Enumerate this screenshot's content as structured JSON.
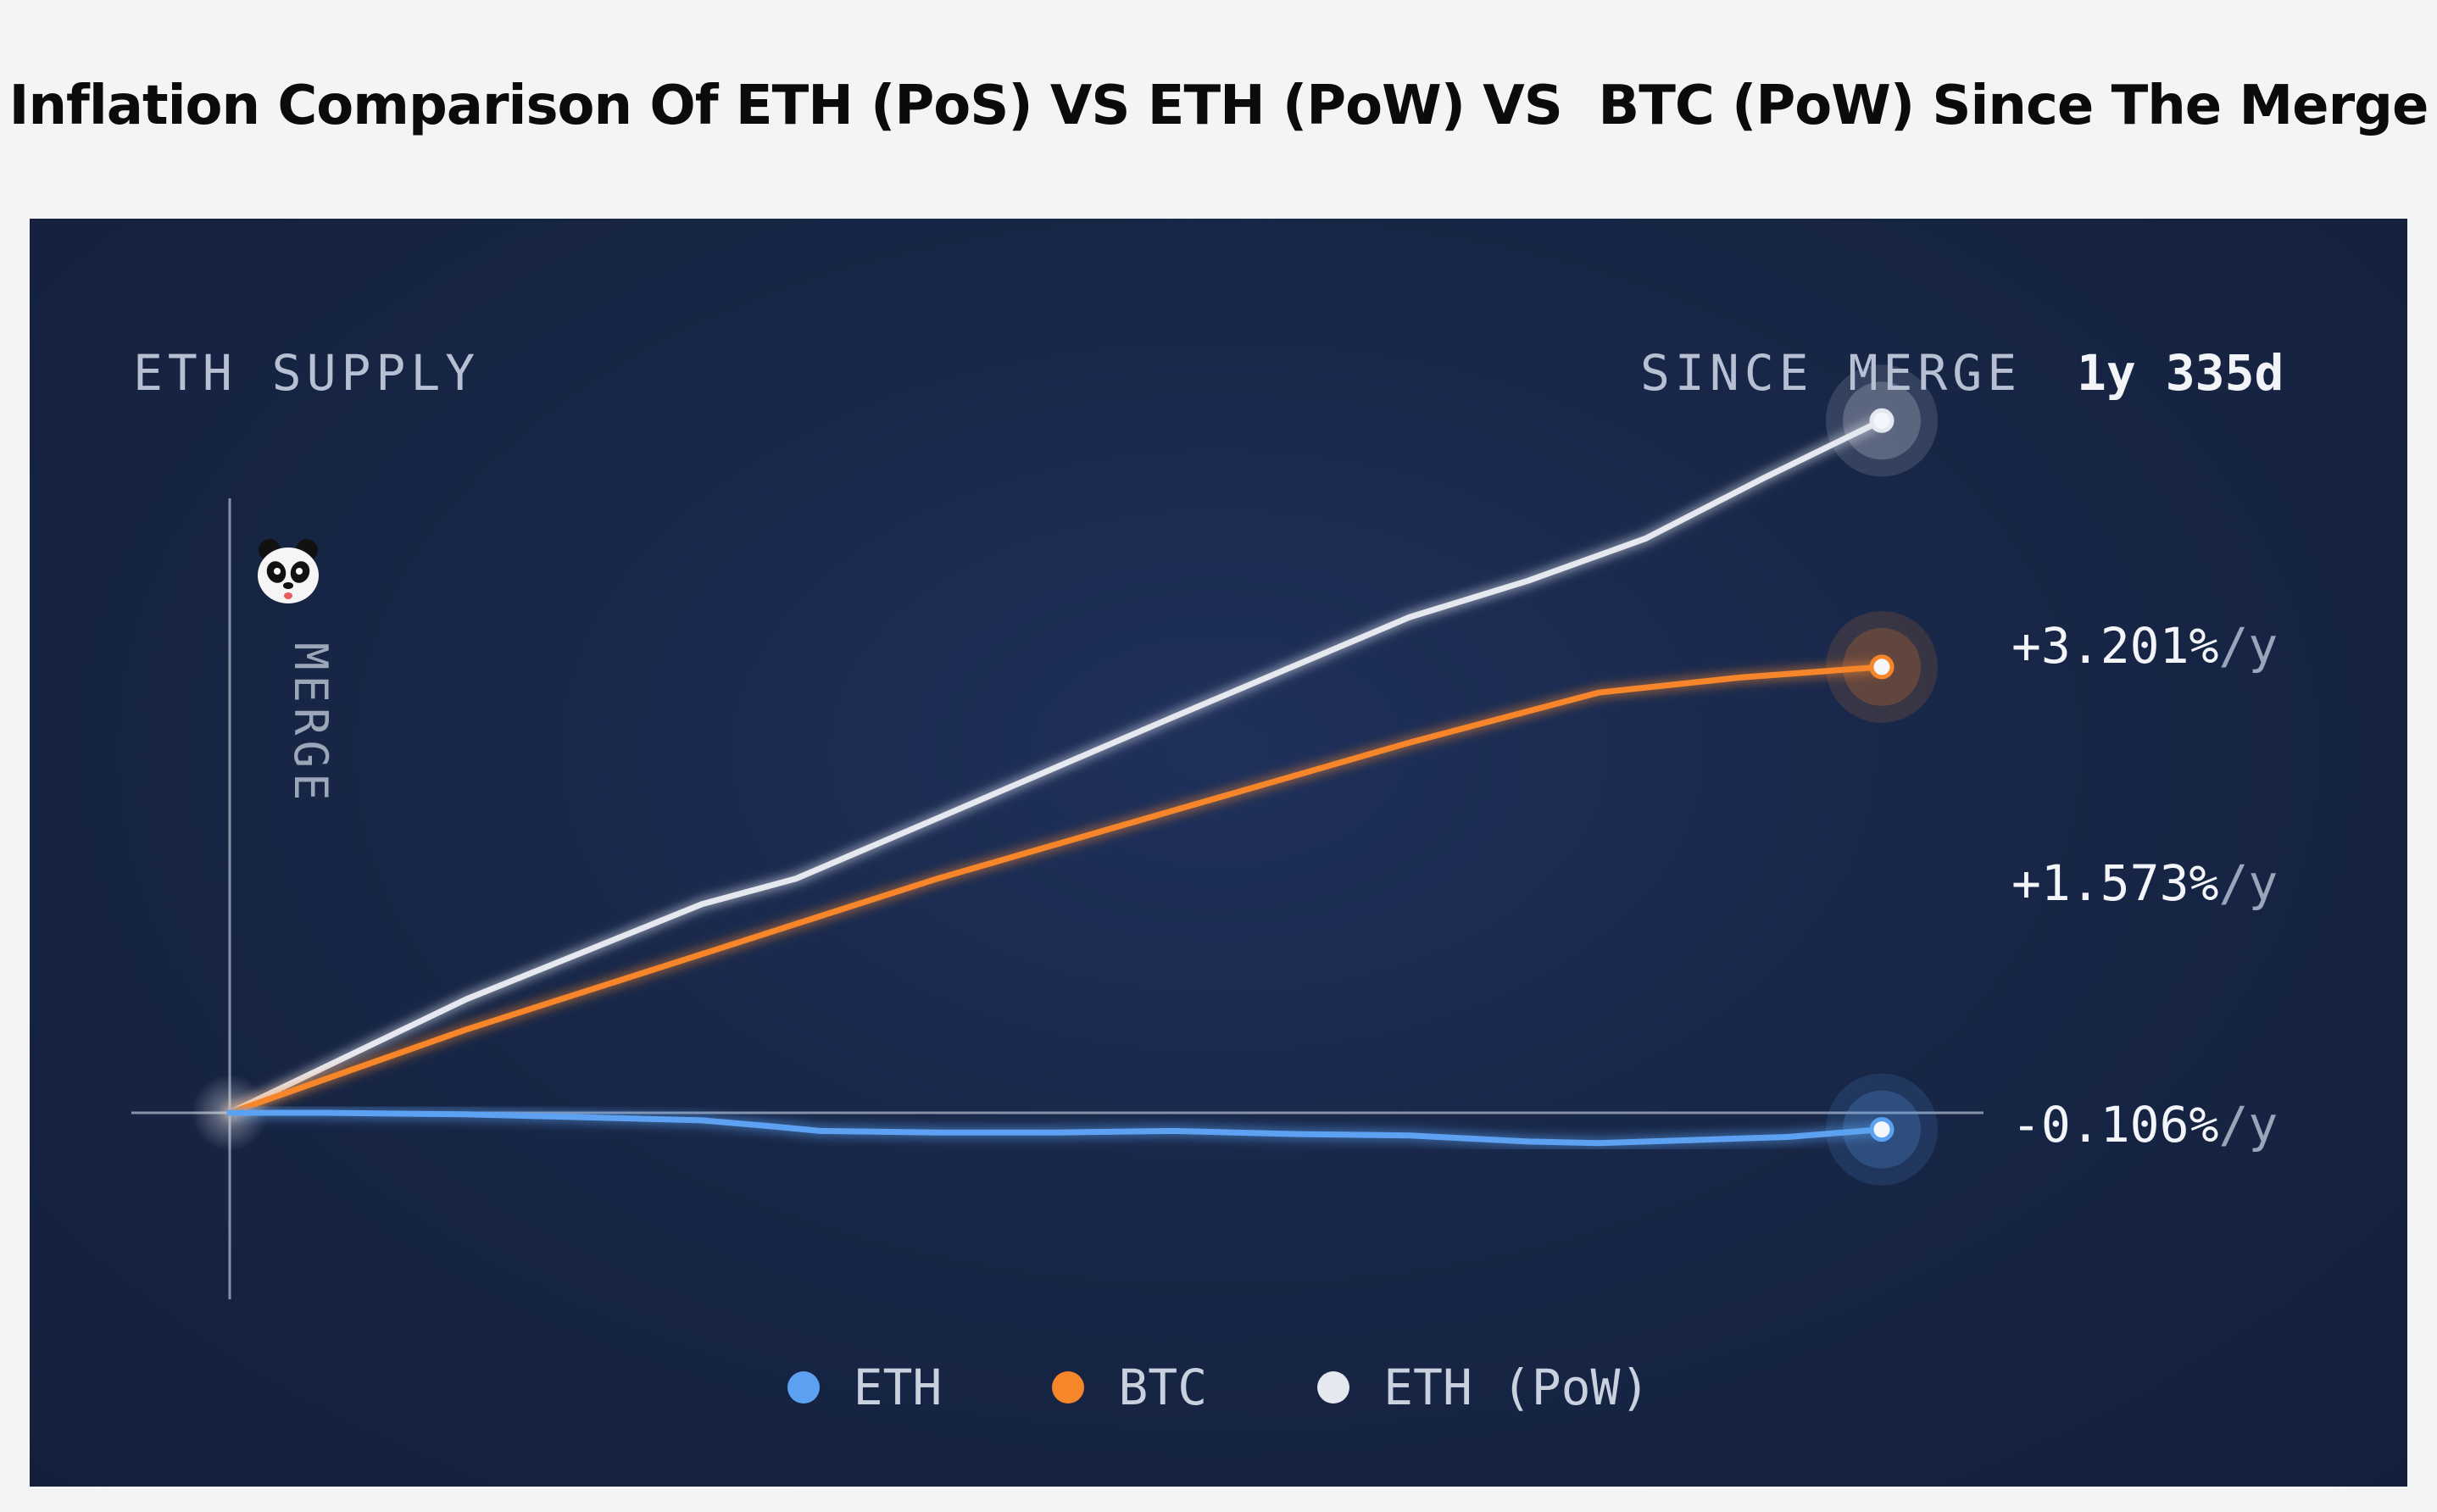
{
  "title": "Inflation Comparison Of ETH (PoS) VS ETH (PoW) VS  BTC (PoW) Since The Merge",
  "panel": {
    "supply_label": "ETH SUPPLY",
    "since_merge_label": "SINCE MERGE",
    "since_merge_value": "1y 335d",
    "merge_marker": "MERGE",
    "background": "#182748"
  },
  "chart_data": {
    "type": "line",
    "title": "",
    "xlabel": "",
    "ylabel": "",
    "x_unit": "days since merge",
    "x_range": [
      0,
      700
    ],
    "y_unit": "% supply change",
    "y_range": [
      -0.8,
      5.4
    ],
    "grid": false,
    "legend_position": "bottom",
    "series": [
      {
        "name": "ETH",
        "color": "#5da2f2",
        "end_label": "-0.106%/y",
        "end_label_value": "-0.106%",
        "end_label_unit": "/y",
        "points": [
          [
            0,
            0.0
          ],
          [
            40,
            0.0
          ],
          [
            100,
            -0.01
          ],
          [
            150,
            -0.03
          ],
          [
            200,
            -0.05
          ],
          [
            230,
            -0.09
          ],
          [
            250,
            -0.12
          ],
          [
            300,
            -0.13
          ],
          [
            350,
            -0.13
          ],
          [
            400,
            -0.12
          ],
          [
            450,
            -0.14
          ],
          [
            500,
            -0.15
          ],
          [
            550,
            -0.19
          ],
          [
            580,
            -0.2
          ],
          [
            620,
            -0.18
          ],
          [
            660,
            -0.16
          ],
          [
            700,
            -0.11
          ]
        ]
      },
      {
        "name": "BTC",
        "color": "#f7862a",
        "end_label": "+1.573%/y",
        "end_label_value": "+1.573%",
        "end_label_unit": "/y",
        "points": [
          [
            0,
            0.0
          ],
          [
            100,
            0.55
          ],
          [
            200,
            1.05
          ],
          [
            300,
            1.55
          ],
          [
            400,
            2.0
          ],
          [
            500,
            2.45
          ],
          [
            580,
            2.78
          ],
          [
            640,
            2.88
          ],
          [
            700,
            2.95
          ]
        ]
      },
      {
        "name": "ETH (PoW)",
        "color": "#e6e8f0",
        "end_label": "+3.201%/y",
        "end_label_value": "+3.201%",
        "end_label_unit": "/y",
        "points": [
          [
            0,
            0.0
          ],
          [
            100,
            0.75
          ],
          [
            200,
            1.38
          ],
          [
            240,
            1.55
          ],
          [
            300,
            1.95
          ],
          [
            400,
            2.62
          ],
          [
            500,
            3.28
          ],
          [
            550,
            3.52
          ],
          [
            600,
            3.8
          ],
          [
            650,
            4.2
          ],
          [
            700,
            4.58
          ]
        ]
      }
    ]
  }
}
